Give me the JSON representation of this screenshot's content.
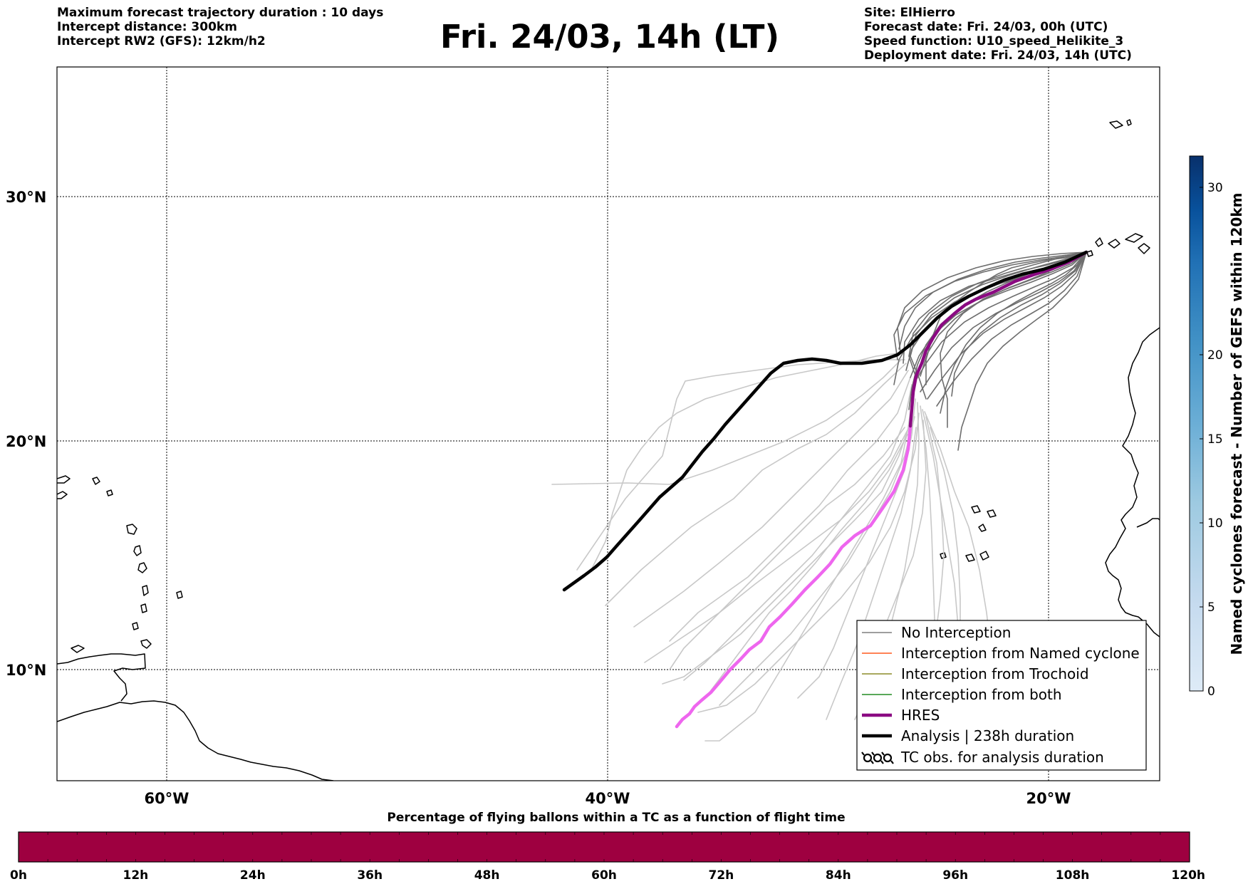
{
  "header": {
    "left_lines": [
      "Maximum forecast trajectory duration : 10 days",
      "Intercept distance: 300km",
      "Intercept RW2 (GFS):  12km/h2"
    ],
    "title": "Fri. 24/03, 14h (LT)",
    "right_lines": [
      "Site: ElHierro",
      "Forecast date: Fri. 24/03, 00h (UTC)",
      "Speed function: U10_speed_Helikite_3",
      "Deployment date: Fri. 24/03, 14h (UTC)"
    ]
  },
  "map": {
    "lat_labels": [
      "30°N",
      "20°N",
      "10°N"
    ],
    "lon_labels": [
      "60°W",
      "40°W",
      "20°W"
    ],
    "colors": {
      "ensemble_no_interception": "#6e6e6e",
      "ensemble_after": "#c8c8c8",
      "hres": "#8b0a82",
      "hres_after": "#ee66ee",
      "analysis": "#000000"
    }
  },
  "legend": {
    "items": [
      {
        "label": "No Interception",
        "color": "#7f7f7f",
        "style": "thin"
      },
      {
        "label": "Interception from Named cyclone",
        "color": "#ff5a1e",
        "style": "thin"
      },
      {
        "label": "Interception from Trochoid",
        "color": "#8c8c28",
        "style": "thin"
      },
      {
        "label": "Interception from both",
        "color": "#228b22",
        "style": "thin"
      },
      {
        "label": "HRES",
        "color": "#8b0a82",
        "style": "thick"
      },
      {
        "label": "Analysis | 238h duration",
        "color": "#000000",
        "style": "thick"
      },
      {
        "label": "TC obs. for analysis duration",
        "color": "#000000",
        "style": "symbol"
      }
    ]
  },
  "colorbar": {
    "title": "Named cyclones forecast - Number of GEFS within 120km",
    "ticks": [
      "0",
      "5",
      "10",
      "15",
      "20",
      "30"
    ],
    "colors": [
      "#deebf7",
      "#c6dbef",
      "#9ecae1",
      "#6baed6",
      "#4292c6",
      "#2171b5",
      "#08519c",
      "#08306b"
    ]
  },
  "timeline": {
    "title": "Percentage of flying ballons within a TC as a function of flight time",
    "ticks": [
      "0h",
      "12h",
      "24h",
      "36h",
      "48h",
      "60h",
      "72h",
      "84h",
      "96h",
      "108h",
      "120h"
    ],
    "color": "#9e0040"
  }
}
